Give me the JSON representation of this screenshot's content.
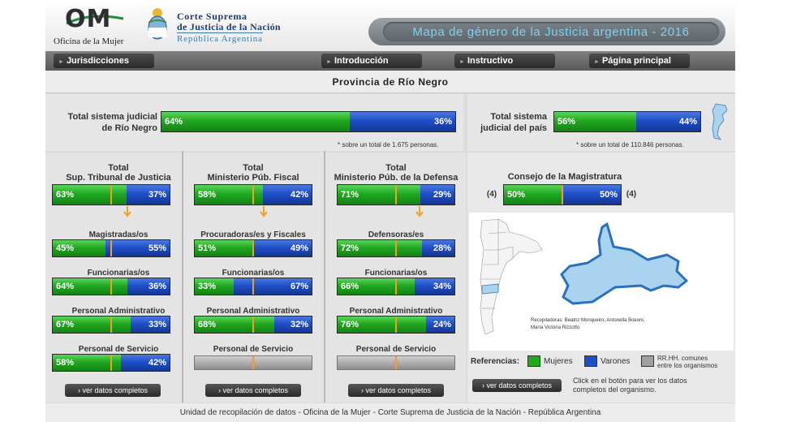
{
  "header": {
    "om_letters": "OM",
    "om_subtitle": "Oficina de la Mujer",
    "csj_line1": "Corte Suprema",
    "csj_line2": "de Justicia de la Nación",
    "csj_line3": "República Argentina",
    "title": "Mapa de género de la Justicia argentina - 2016"
  },
  "nav": {
    "items": [
      "Jurisdicciones",
      "Introducción",
      "Instructivo",
      "Página principal"
    ]
  },
  "province_title": "Provincia de Río Negro",
  "totals": {
    "province": {
      "label_line1": "Total  sistema judicial",
      "label_line2": "de Río Negro",
      "women": "64%",
      "men": "36%",
      "women_value": 64,
      "note": "* sobre un total de 1.675 personas."
    },
    "country": {
      "label_line1": "Total sistema",
      "label_line2": "judicial del país",
      "women": "56%",
      "men": "44%",
      "women_value": 56,
      "note": "* sobre un total de 110.846 personas."
    }
  },
  "columns": [
    {
      "title_line1": "Total",
      "title_line2": "Sup. Tribunal de Justicia",
      "total": {
        "women": "63%",
        "men": "37%",
        "women_value": 63
      },
      "rows": [
        {
          "label": "Magistradas/os",
          "women": "45%",
          "men": "55%",
          "women_value": 45
        },
        {
          "label": "Funcionarias/os",
          "women": "64%",
          "men": "36%",
          "women_value": 64
        },
        {
          "label": "Personal Administrativo",
          "women": "67%",
          "men": "33%",
          "women_value": 67
        },
        {
          "label": "Personal de Servicio",
          "women": "58%",
          "men": "42%",
          "women_value": 58
        }
      ],
      "button": "› ver datos completos"
    },
    {
      "title_line1": "Total",
      "title_line2": "Ministerio Púb. Fiscal",
      "total": {
        "women": "58%",
        "men": "42%",
        "women_value": 58
      },
      "rows": [
        {
          "label": "Procuradoras/es y Fiscales",
          "women": "51%",
          "men": "49%",
          "women_value": 51
        },
        {
          "label": "Funcionarias/os",
          "women": "33%",
          "men": "67%",
          "women_value": 33
        },
        {
          "label": "Personal Administrativo",
          "women": "68%",
          "men": "32%",
          "women_value": 68
        },
        {
          "label": "Personal de Servicio",
          "women": "",
          "men": "",
          "women_value": null
        }
      ],
      "button": "› ver datos completos"
    },
    {
      "title_line1": "Total",
      "title_line2": "Ministerio Púb. de la Defensa",
      "total": {
        "women": "71%",
        "men": "29%",
        "women_value": 71
      },
      "rows": [
        {
          "label": "Defensoras/es",
          "women": "72%",
          "men": "28%",
          "women_value": 72
        },
        {
          "label": "Funcionarias/os",
          "women": "66%",
          "men": "34%",
          "women_value": 66
        },
        {
          "label": "Personal Administrativo",
          "women": "76%",
          "men": "24%",
          "women_value": 76
        },
        {
          "label": "Personal de Servicio",
          "women": "",
          "men": "",
          "women_value": null
        }
      ],
      "button": "› ver datos completos"
    }
  ],
  "consejo": {
    "title": "Consejo de la Magistratura",
    "women": "50%",
    "men": "50%",
    "women_value": 50,
    "count_left": "(4)",
    "count_right": "(4)"
  },
  "map": {
    "credit_line1": "Recopiladoras: Beatriz Monqueiro, Antonella Boeoni,",
    "credit_line2": "María Victoria Rizzotto"
  },
  "legend": {
    "title": "Referencias:",
    "women": "Mujeres",
    "men": "Varones",
    "common_line1": "RR.HH. comunes",
    "common_line2": "entre los organismos",
    "colors": {
      "women": "#21a821",
      "men": "#1f4fc8",
      "common": "#a0a0a0"
    }
  },
  "consejo_button": "› ver datos completos",
  "consejo_help_line1": "Click en el botón para ver los datos",
  "consejo_help_line2": "completos del organismo.",
  "footer": "Unidad de recopilación de datos - Oficina de la Mujer - Corte Suprema de Justicia de la Nación - República Argentina"
}
